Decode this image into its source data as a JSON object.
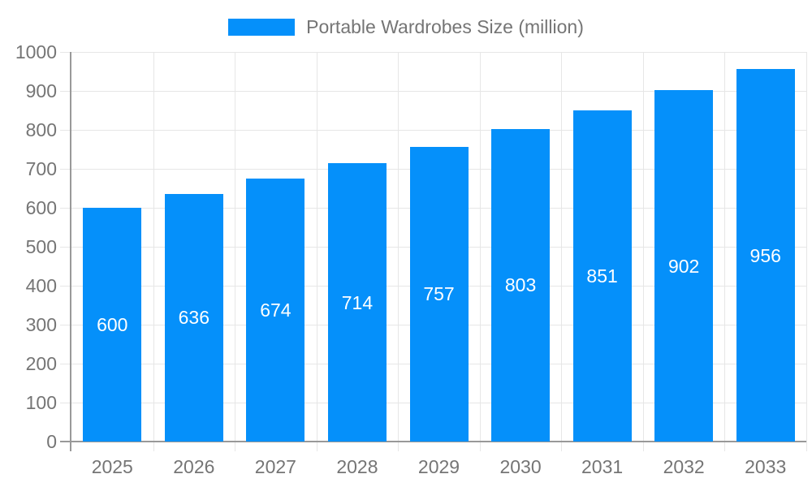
{
  "legend": {
    "label": "Portable Wardrobes Size (million)",
    "swatch_icon": "legend-color-swatch"
  },
  "chart_data": {
    "type": "bar",
    "title": "Portable Wardrobes Size (million)",
    "categories": [
      "2025",
      "2026",
      "2027",
      "2028",
      "2029",
      "2030",
      "2031",
      "2032",
      "2033"
    ],
    "values": [
      600,
      636,
      674,
      714,
      757,
      803,
      851,
      902,
      956
    ],
    "series_name": "Portable Wardrobes Size (million)",
    "xlabel": "",
    "ylabel": "",
    "ylim": [
      0,
      1000
    ],
    "yticks": [
      0,
      100,
      200,
      300,
      400,
      500,
      600,
      700,
      800,
      900,
      1000
    ],
    "grid": true,
    "legend_position": "top-center",
    "value_labels": "inside-center-white",
    "colors": {
      "bar": "#0590fa",
      "value_label": "#ffffff",
      "axis_text": "#757575",
      "gridline": "#e6e6e6",
      "axis_line": "#999999",
      "background": "#ffffff"
    }
  }
}
